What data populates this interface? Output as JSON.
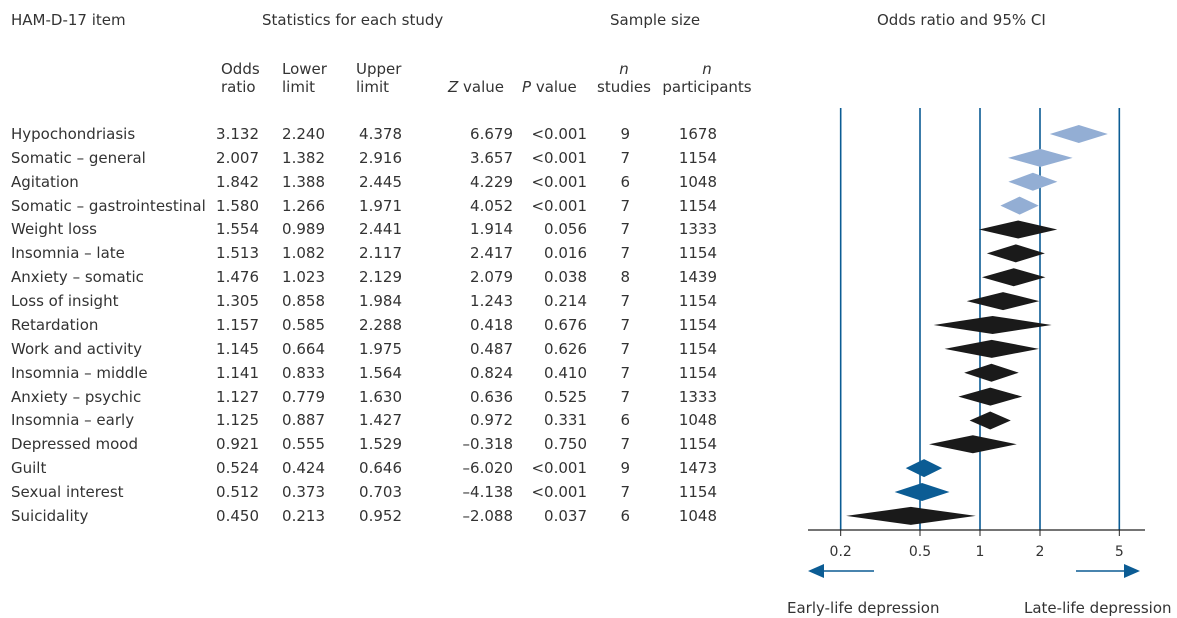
{
  "headers": {
    "item": "HAM-D-17 item",
    "stats": "Statistics for each study",
    "sample": "Sample size",
    "plot": "Odds ratio and 95% CI",
    "or_1": "Odds",
    "or_2": "ratio",
    "lower_1": "Lower",
    "lower_2": "limit",
    "upper_1": "Upper",
    "upper_2": "limit",
    "z_it": "Z",
    "z_rest": " value",
    "p_it": "P",
    "p_rest": " value",
    "nstud_1": "n",
    "nstud_2": "studies",
    "npart_1": "n",
    "npart_2": "participants"
  },
  "footer": {
    "left": "Early-life depression",
    "right": "Late-life depression"
  },
  "colors": {
    "light_diamond": "#93aed4",
    "black_diamond": "#1a1a1a",
    "blue_diamond": "#0b5c94",
    "ref_line": "#0b5c94",
    "arrow": "#0b5c94"
  },
  "chart_data": {
    "type": "forest",
    "title": "Odds ratio and 95% CI",
    "x_scale": "log",
    "xlim": [
      0.2,
      5
    ],
    "x_ticks": [
      "0.2",
      "0.5",
      "1",
      "2",
      "5"
    ],
    "ref_lines": [
      0.2,
      0.5,
      1,
      2,
      5
    ],
    "rows": [
      {
        "item": "Hypochondriasis",
        "or": "3.132",
        "lower": "2.240",
        "upper": "4.378",
        "z": "6.679",
        "p": "<0.001",
        "studies": "9",
        "participants": "1678",
        "group": "light"
      },
      {
        "item": "Somatic – general",
        "or": "2.007",
        "lower": "1.382",
        "upper": "2.916",
        "z": "3.657",
        "p": "<0.001",
        "studies": "7",
        "participants": "1154",
        "group": "light"
      },
      {
        "item": "Agitation",
        "or": "1.842",
        "lower": "1.388",
        "upper": "2.445",
        "z": "4.229",
        "p": "<0.001",
        "studies": "6",
        "participants": "1048",
        "group": "light"
      },
      {
        "item": "Somatic – gastrointestinal",
        "or": "1.580",
        "lower": "1.266",
        "upper": "1.971",
        "z": "4.052",
        "p": "<0.001",
        "studies": "7",
        "participants": "1154",
        "group": "light"
      },
      {
        "item": "Weight loss",
        "or": "1.554",
        "lower": "0.989",
        "upper": "2.441",
        "z": "1.914",
        "p": "0.056",
        "studies": "7",
        "participants": "1333",
        "group": "black"
      },
      {
        "item": "Insomnia – late",
        "or": "1.513",
        "lower": "1.082",
        "upper": "2.117",
        "z": "2.417",
        "p": "0.016",
        "studies": "7",
        "participants": "1154",
        "group": "black"
      },
      {
        "item": "Anxiety – somatic",
        "or": "1.476",
        "lower": "1.023",
        "upper": "2.129",
        "z": "2.079",
        "p": "0.038",
        "studies": "8",
        "participants": "1439",
        "group": "black"
      },
      {
        "item": "Loss of insight",
        "or": "1.305",
        "lower": "0.858",
        "upper": "1.984",
        "z": "1.243",
        "p": "0.214",
        "studies": "7",
        "participants": "1154",
        "group": "black"
      },
      {
        "item": "Retardation",
        "or": "1.157",
        "lower": "0.585",
        "upper": "2.288",
        "z": "0.418",
        "p": "0.676",
        "studies": "7",
        "participants": "1154",
        "group": "black"
      },
      {
        "item": "Work and activity",
        "or": "1.145",
        "lower": "0.664",
        "upper": "1.975",
        "z": "0.487",
        "p": "0.626",
        "studies": "7",
        "participants": "1154",
        "group": "black"
      },
      {
        "item": "Insomnia – middle",
        "or": "1.141",
        "lower": "0.833",
        "upper": "1.564",
        "z": "0.824",
        "p": "0.410",
        "studies": "7",
        "participants": "1154",
        "group": "black"
      },
      {
        "item": "Anxiety – psychic",
        "or": "1.127",
        "lower": "0.779",
        "upper": "1.630",
        "z": "0.636",
        "p": "0.525",
        "studies": "7",
        "participants": "1333",
        "group": "black"
      },
      {
        "item": "Insomnia – early",
        "or": "1.125",
        "lower": "0.887",
        "upper": "1.427",
        "z": "0.972",
        "p": "0.331",
        "studies": "6",
        "participants": "1048",
        "group": "black"
      },
      {
        "item": "Depressed mood",
        "or": "0.921",
        "lower": "0.555",
        "upper": "1.529",
        "z": "–0.318",
        "p": "0.750",
        "studies": "7",
        "participants": "1154",
        "group": "black"
      },
      {
        "item": "Guilt",
        "or": "0.524",
        "lower": "0.424",
        "upper": "0.646",
        "z": "–6.020",
        "p": "<0.001",
        "studies": "9",
        "participants": "1473",
        "group": "blue"
      },
      {
        "item": "Sexual interest",
        "or": "0.512",
        "lower": "0.373",
        "upper": "0.703",
        "z": "–4.138",
        "p": "<0.001",
        "studies": "7",
        "participants": "1154",
        "group": "blue"
      },
      {
        "item": "Suicidality",
        "or": "0.450",
        "lower": "0.213",
        "upper": "0.952",
        "z": "–2.088",
        "p": "0.037",
        "studies": "6",
        "participants": "1048",
        "group": "black"
      }
    ]
  }
}
